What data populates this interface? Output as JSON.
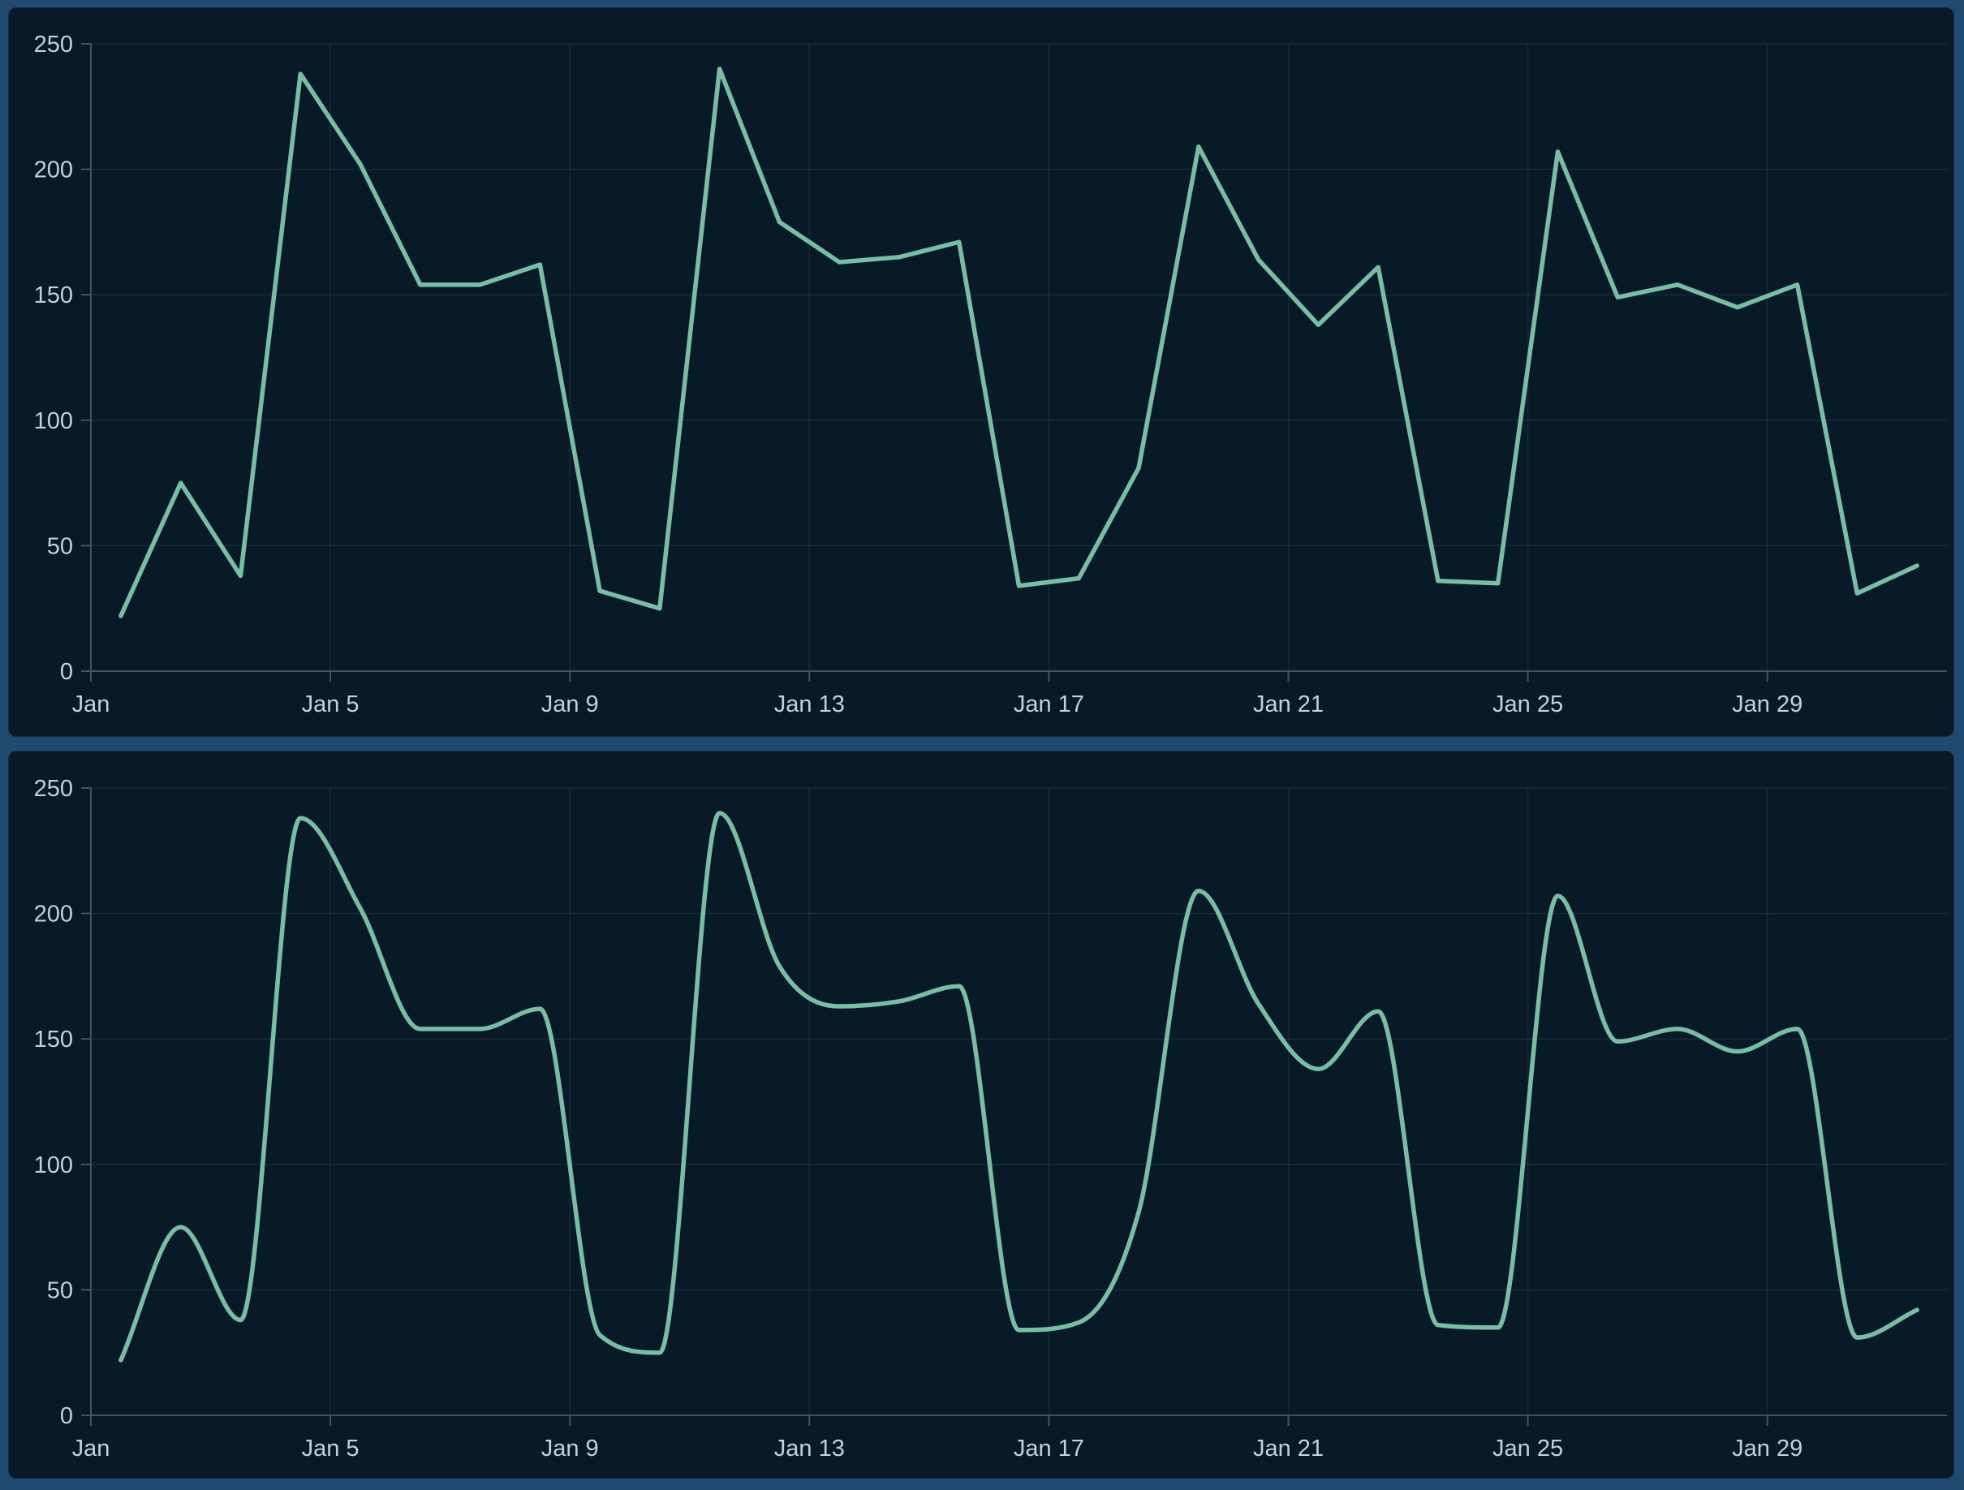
{
  "style": {
    "page_background": "#214a70",
    "panel_background": "#081a27",
    "line_color": "#78bea5",
    "grid_color": "rgba(197,215,227,0.09)",
    "axis_color": "#44545f",
    "label_color": "#c7d0d6"
  },
  "chart_data": [
    {
      "type": "line",
      "title": "",
      "xlabel": "",
      "ylabel": "",
      "interpolation": "linear",
      "x": [
        "Jan 1",
        "Jan 2",
        "Jan 3",
        "Jan 4",
        "Jan 5",
        "Jan 6",
        "Jan 7",
        "Jan 8",
        "Jan 9",
        "Jan 10",
        "Jan 11",
        "Jan 12",
        "Jan 13",
        "Jan 14",
        "Jan 15",
        "Jan 16",
        "Jan 17",
        "Jan 18",
        "Jan 19",
        "Jan 20",
        "Jan 21",
        "Jan 22",
        "Jan 23",
        "Jan 24",
        "Jan 25",
        "Jan 26",
        "Jan 27",
        "Jan 28",
        "Jan 29",
        "Jan 30",
        "Jan 31"
      ],
      "values": [
        22,
        75,
        38,
        238,
        202,
        154,
        154,
        162,
        32,
        25,
        240,
        179,
        163,
        165,
        171,
        34,
        37,
        81,
        209,
        164,
        138,
        161,
        36,
        35,
        207,
        149,
        154,
        145,
        154,
        31,
        42
      ],
      "ylim": [
        0,
        250
      ],
      "y_ticks": [
        0,
        50,
        100,
        150,
        200,
        250
      ],
      "x_tick_labels": [
        "Jan",
        "Jan 5",
        "Jan 9",
        "Jan 13",
        "Jan 17",
        "Jan 21",
        "Jan 25",
        "Jan 29"
      ],
      "x_tick_indices": [
        0,
        4,
        8,
        12,
        16,
        20,
        24,
        28
      ],
      "grid": true,
      "legend": "none"
    },
    {
      "type": "line",
      "title": "",
      "xlabel": "",
      "ylabel": "",
      "interpolation": "smooth-monotone",
      "x": [
        "Jan 1",
        "Jan 2",
        "Jan 3",
        "Jan 4",
        "Jan 5",
        "Jan 6",
        "Jan 7",
        "Jan 8",
        "Jan 9",
        "Jan 10",
        "Jan 11",
        "Jan 12",
        "Jan 13",
        "Jan 14",
        "Jan 15",
        "Jan 16",
        "Jan 17",
        "Jan 18",
        "Jan 19",
        "Jan 20",
        "Jan 21",
        "Jan 22",
        "Jan 23",
        "Jan 24",
        "Jan 25",
        "Jan 26",
        "Jan 27",
        "Jan 28",
        "Jan 29",
        "Jan 30",
        "Jan 31"
      ],
      "values": [
        22,
        75,
        38,
        238,
        202,
        154,
        154,
        162,
        32,
        25,
        240,
        179,
        163,
        165,
        171,
        34,
        37,
        81,
        209,
        164,
        138,
        161,
        36,
        35,
        207,
        149,
        154,
        145,
        154,
        31,
        42
      ],
      "ylim": [
        0,
        250
      ],
      "y_ticks": [
        0,
        50,
        100,
        150,
        200,
        250
      ],
      "x_tick_labels": [
        "Jan",
        "Jan 5",
        "Jan 9",
        "Jan 13",
        "Jan 17",
        "Jan 21",
        "Jan 25",
        "Jan 29"
      ],
      "x_tick_indices": [
        0,
        4,
        8,
        12,
        16,
        20,
        24,
        28
      ],
      "grid": true,
      "legend": "none"
    }
  ]
}
